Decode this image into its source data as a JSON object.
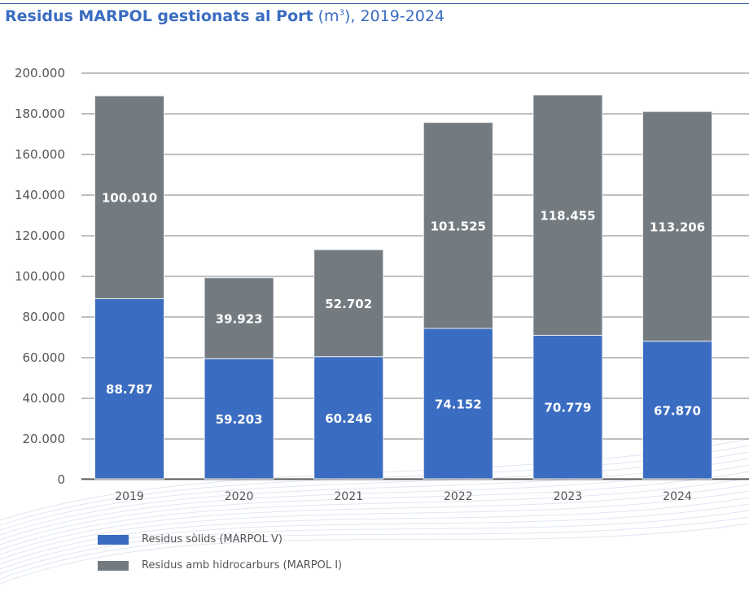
{
  "title": {
    "bold": "Residus MARPOL gestionats al Port",
    "unit_prefix": " (m",
    "unit_sup": "3",
    "unit_suffix": "), 2019-2024"
  },
  "chart_data": {
    "type": "bar",
    "stacked": true,
    "categories": [
      "2019",
      "2020",
      "2021",
      "2022",
      "2023",
      "2024"
    ],
    "series": [
      {
        "name": "Residus sòlids (MARPOL V)",
        "color": "#3a6cc1",
        "values": [
          88787,
          59203,
          60246,
          74152,
          70779,
          67870
        ],
        "labels": [
          "88.787",
          "59.203",
          "60.246",
          "74.152",
          "70.779",
          "67.870"
        ]
      },
      {
        "name": "Residus amb hidrocarburs (MARPOL I)",
        "color": "#737b80",
        "values": [
          100010,
          39923,
          52702,
          101525,
          118455,
          113206
        ],
        "labels": [
          "100.010",
          "39.923",
          "52.702",
          "101.525",
          "118.455",
          "113.206"
        ]
      }
    ],
    "yticks": [
      "200.000",
      "180.000",
      "160.000",
      "140.000",
      "120.000",
      "100.000",
      "80.000",
      "60.000",
      "40.000",
      "20.000",
      "0"
    ],
    "ylim": [
      0,
      200000
    ],
    "grid": true,
    "legend": "bottom-left"
  }
}
